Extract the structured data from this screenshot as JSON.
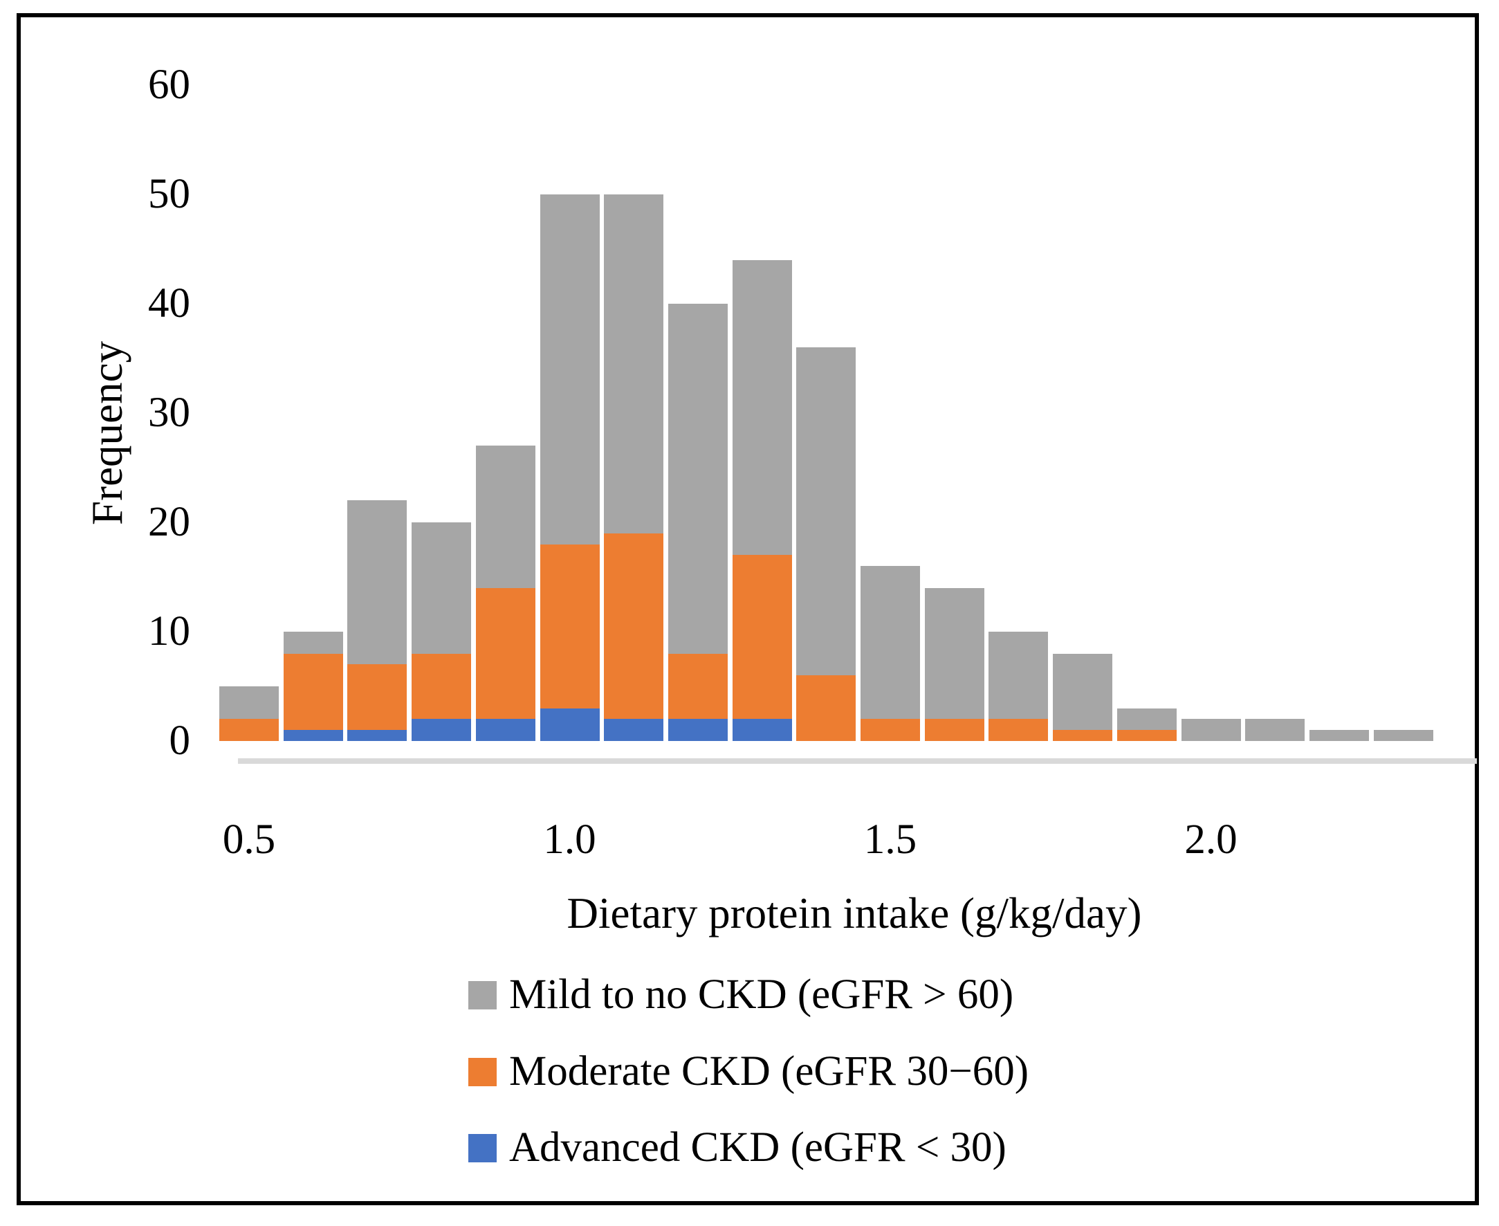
{
  "y_axis": {
    "title": "Frequency",
    "ticks": [
      0,
      10,
      20,
      30,
      40,
      50,
      60
    ]
  },
  "x_axis": {
    "title": "Dietary protein intake (g/kg/day)",
    "ticks": [
      {
        "label": "0.5",
        "value": 0.5
      },
      {
        "label": "1.0",
        "value": 1.0
      },
      {
        "label": "1.5",
        "value": 1.5
      },
      {
        "label": "2.0",
        "value": 2.0
      }
    ]
  },
  "legend": {
    "items": [
      {
        "label": "Mild to no CKD (eGFR > 60)",
        "series": "mild",
        "color": "#a6a6a6"
      },
      {
        "label": "Moderate CKD (eGFR 30−60)",
        "series": "moderate",
        "color": "#ed7d31"
      },
      {
        "label": "Advanced CKD (eGFR < 30)",
        "series": "advanced",
        "color": "#4472c4"
      }
    ]
  },
  "colors": {
    "mild_gray": "#a6a6a6",
    "moderate_orange": "#ed7d31",
    "advanced_blue": "#4472c4",
    "axis_strip": "#d9d9d9",
    "frame_border": "#000000",
    "background": "#ffffff"
  },
  "chart_data": {
    "type": "bar",
    "stacked": true,
    "title": "",
    "xlabel": "Dietary protein intake (g/kg/day)",
    "ylabel": "Frequency",
    "ylim": [
      0,
      60
    ],
    "ytick_step": 10,
    "grid": false,
    "legend_position": "bottom",
    "bin_width": 0.1,
    "x": [
      0.5,
      0.6,
      0.7,
      0.8,
      0.9,
      1.0,
      1.1,
      1.2,
      1.3,
      1.4,
      1.5,
      1.6,
      1.7,
      1.8,
      1.9,
      2.0,
      2.1,
      2.2,
      2.3
    ],
    "xticks": [
      0.5,
      1.0,
      1.5,
      2.0
    ],
    "series": [
      {
        "name": "Advanced CKD (eGFR < 30)",
        "key": "advanced",
        "color": "#4472c4",
        "values": [
          0,
          1,
          1,
          2,
          2,
          3,
          2,
          2,
          2,
          0,
          0,
          0,
          0,
          0,
          0,
          0,
          0,
          0,
          0
        ]
      },
      {
        "name": "Moderate CKD (eGFR 30−60)",
        "key": "moderate",
        "color": "#ed7d31",
        "values": [
          2,
          7,
          6,
          6,
          12,
          15,
          17,
          6,
          15,
          6,
          2,
          2,
          2,
          1,
          1,
          0,
          0,
          0,
          0
        ]
      },
      {
        "name": "Mild to no CKD (eGFR > 60)",
        "key": "mild",
        "color": "#a6a6a6",
        "values": [
          3,
          2,
          15,
          12,
          13,
          32,
          31,
          32,
          27,
          30,
          14,
          12,
          8,
          7,
          2,
          2,
          2,
          1,
          1
        ]
      }
    ],
    "totals": [
      5,
      10,
      22,
      20,
      27,
      50,
      50,
      40,
      44,
      36,
      16,
      14,
      10,
      8,
      3,
      2,
      2,
      1,
      1
    ]
  }
}
